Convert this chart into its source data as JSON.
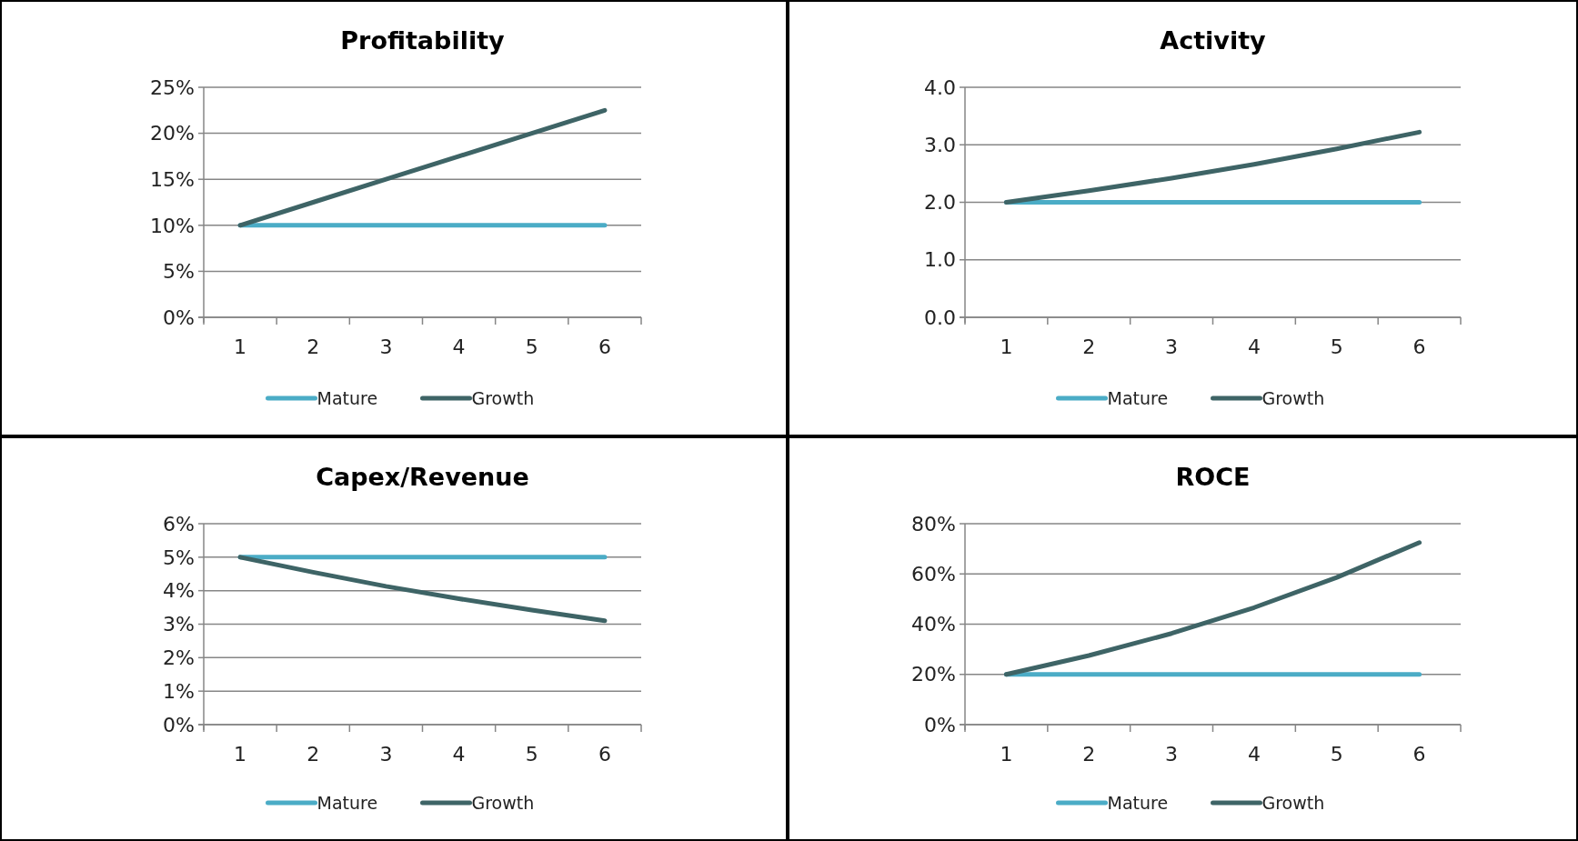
{
  "chart_data": [
    {
      "type": "line",
      "title": "Profitability",
      "categories": [
        "1",
        "2",
        "3",
        "4",
        "5",
        "6"
      ],
      "series": [
        {
          "name": "Mature",
          "color": "#4bacc6",
          "values": [
            10,
            10,
            10,
            10,
            10,
            10
          ]
        },
        {
          "name": "Growth",
          "color": "#3e6466",
          "values": [
            10,
            12.5,
            15,
            17.5,
            20,
            22.5
          ]
        }
      ],
      "ylim": [
        0,
        25
      ],
      "yticks": [
        {
          "value": 0,
          "label": "0%"
        },
        {
          "value": 5,
          "label": "5%"
        },
        {
          "value": 10,
          "label": "10%"
        },
        {
          "value": 15,
          "label": "15%"
        },
        {
          "value": 20,
          "label": "20%"
        },
        {
          "value": 25,
          "label": "25%"
        }
      ],
      "grid": "y",
      "legend": "bottom",
      "marker": "none"
    },
    {
      "type": "line",
      "title": "Activity",
      "categories": [
        "1",
        "2",
        "3",
        "4",
        "5",
        "6"
      ],
      "series": [
        {
          "name": "Mature",
          "color": "#4bacc6",
          "values": [
            2,
            2,
            2,
            2,
            2,
            2
          ]
        },
        {
          "name": "Growth",
          "color": "#3e6466",
          "values": [
            2,
            2.2,
            2.42,
            2.66,
            2.93,
            3.22
          ]
        }
      ],
      "ylim": [
        0,
        4
      ],
      "yticks": [
        {
          "value": 0,
          "label": "0.0"
        },
        {
          "value": 1,
          "label": "1.0"
        },
        {
          "value": 2,
          "label": "2.0"
        },
        {
          "value": 3,
          "label": "3.0"
        },
        {
          "value": 4,
          "label": "4.0"
        }
      ],
      "grid": "y",
      "legend": "bottom",
      "marker": "none"
    },
    {
      "type": "line",
      "title": "Capex/Revenue",
      "categories": [
        "1",
        "2",
        "3",
        "4",
        "5",
        "6"
      ],
      "series": [
        {
          "name": "Mature",
          "color": "#4bacc6",
          "values": [
            5,
            5,
            5,
            5,
            5,
            5
          ]
        },
        {
          "name": "Growth",
          "color": "#3e6466",
          "values": [
            5,
            4.55,
            4.13,
            3.76,
            3.42,
            3.1
          ]
        }
      ],
      "ylim": [
        0,
        6
      ],
      "yticks": [
        {
          "value": 0,
          "label": "0%"
        },
        {
          "value": 1,
          "label": "1%"
        },
        {
          "value": 2,
          "label": "2%"
        },
        {
          "value": 3,
          "label": "3%"
        },
        {
          "value": 4,
          "label": "4%"
        },
        {
          "value": 5,
          "label": "5%"
        },
        {
          "value": 6,
          "label": "6%"
        }
      ],
      "grid": "y",
      "legend": "bottom",
      "marker": "none"
    },
    {
      "type": "line",
      "title": "ROCE",
      "categories": [
        "1",
        "2",
        "3",
        "4",
        "5",
        "6"
      ],
      "series": [
        {
          "name": "Mature",
          "color": "#4bacc6",
          "values": [
            20,
            20,
            20,
            20,
            20,
            20
          ]
        },
        {
          "name": "Growth",
          "color": "#3e6466",
          "values": [
            20,
            27.5,
            36.3,
            46.6,
            58.6,
            72.5
          ]
        }
      ],
      "ylim": [
        0,
        80
      ],
      "yticks": [
        {
          "value": 0,
          "label": "0%"
        },
        {
          "value": 20,
          "label": "20%"
        },
        {
          "value": 40,
          "label": "40%"
        },
        {
          "value": 60,
          "label": "60%"
        },
        {
          "value": 80,
          "label": "80%"
        }
      ],
      "grid": "y",
      "legend": "bottom",
      "marker": "none"
    }
  ]
}
